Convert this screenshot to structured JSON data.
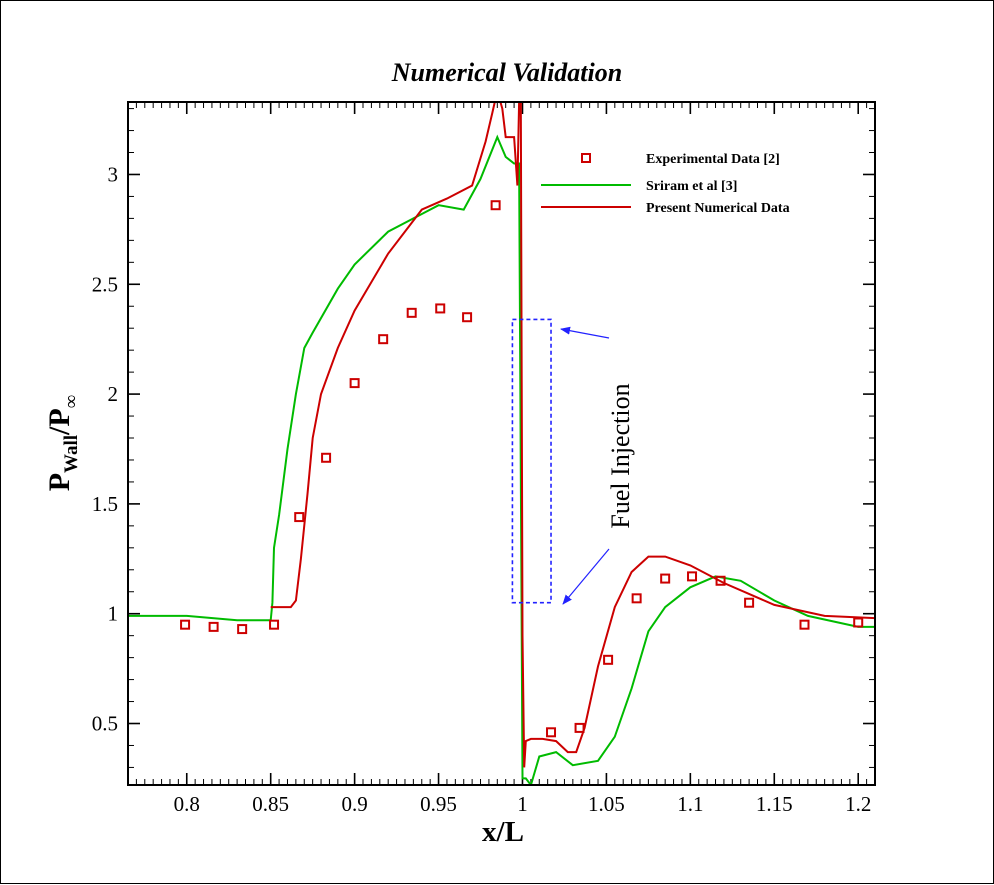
{
  "chart_data": {
    "type": "line",
    "title": "Numerical Validation",
    "xlabel": "x/L",
    "ylabel_main": "P",
    "ylabel_sub": "Wall",
    "ylabel_div": "/P",
    "ylabel_inf": "∞",
    "xlim": [
      0.765,
      1.21
    ],
    "ylim": [
      0.22,
      3.33
    ],
    "xticks": [
      0.8,
      0.85,
      0.9,
      0.95,
      1,
      1.05,
      1.1,
      1.15,
      1.2
    ],
    "xtick_labels": [
      "0.8",
      "0.85",
      "0.9",
      "0.95",
      "1",
      "1.05",
      "1.1",
      "1.15",
      "1.2"
    ],
    "yticks": [
      0.5,
      1,
      1.5,
      2,
      2.5,
      3
    ],
    "ytick_labels": [
      "0.5",
      "1",
      "1.5",
      "2",
      "2.5",
      "3"
    ],
    "legend_position": "top-right",
    "series": [
      {
        "name": "Experimental Data [2]",
        "style": "markers",
        "color": "#cc0000",
        "x": [
          0.799,
          0.816,
          0.833,
          0.852,
          0.867,
          0.883,
          0.9,
          0.917,
          0.934,
          0.951,
          0.967,
          0.984,
          1.017,
          1.034,
          1.051,
          1.068,
          1.085,
          1.101,
          1.118,
          1.135,
          1.168,
          1.2
        ],
        "y": [
          0.95,
          0.94,
          0.93,
          0.95,
          1.44,
          1.71,
          2.05,
          2.25,
          2.37,
          2.39,
          2.35,
          2.86,
          0.46,
          0.48,
          0.79,
          1.07,
          1.16,
          1.17,
          1.15,
          1.05,
          0.95,
          0.96
        ]
      },
      {
        "name": "Sriram et al [3]",
        "style": "line",
        "color": "#00bb00",
        "x": [
          0.765,
          0.8,
          0.83,
          0.85,
          0.851,
          0.852,
          0.855,
          0.86,
          0.865,
          0.87,
          0.875,
          0.89,
          0.9,
          0.92,
          0.94,
          0.95,
          0.965,
          0.975,
          0.985,
          0.99,
          0.995,
          0.998,
          1.0,
          1.002,
          1.005,
          1.01,
          1.02,
          1.03,
          1.045,
          1.055,
          1.065,
          1.075,
          1.085,
          1.1,
          1.115,
          1.13,
          1.15,
          1.17,
          1.2,
          1.21
        ],
        "y": [
          0.99,
          0.99,
          0.97,
          0.97,
          1.05,
          1.3,
          1.45,
          1.75,
          2.0,
          2.21,
          2.28,
          2.48,
          2.59,
          2.74,
          2.82,
          2.86,
          2.84,
          2.98,
          3.17,
          3.08,
          3.05,
          3.05,
          0.25,
          0.25,
          0.22,
          0.35,
          0.37,
          0.31,
          0.33,
          0.44,
          0.66,
          0.92,
          1.03,
          1.12,
          1.17,
          1.15,
          1.06,
          0.99,
          0.94,
          0.94
        ]
      },
      {
        "name": "Present Numerical Data",
        "style": "line",
        "color": "#cc0000",
        "x": [
          0.85,
          0.862,
          0.865,
          0.868,
          0.872,
          0.875,
          0.88,
          0.89,
          0.9,
          0.92,
          0.94,
          0.955,
          0.97,
          0.978,
          0.982,
          0.985,
          0.988,
          0.99,
          0.993,
          0.995,
          0.997,
          0.998,
          0.999,
          1.0,
          1.001,
          1.002,
          1.005,
          1.012,
          1.02,
          1.027,
          1.032,
          1.037,
          1.045,
          1.055,
          1.065,
          1.075,
          1.085,
          1.1,
          1.12,
          1.15,
          1.18,
          1.21
        ],
        "y": [
          1.03,
          1.03,
          1.06,
          1.25,
          1.55,
          1.8,
          2.0,
          2.21,
          2.38,
          2.64,
          2.84,
          2.89,
          2.95,
          3.15,
          3.28,
          3.38,
          3.3,
          3.17,
          3.17,
          3.17,
          2.95,
          3.33,
          3.35,
          0.9,
          0.3,
          0.42,
          0.43,
          0.43,
          0.42,
          0.37,
          0.37,
          0.48,
          0.76,
          1.03,
          1.19,
          1.26,
          1.26,
          1.22,
          1.14,
          1.04,
          0.99,
          0.98
        ]
      }
    ],
    "injection_box": {
      "x": [
        0.994,
        1.017
      ],
      "y": [
        1.05,
        2.34
      ],
      "color": "#2222ff"
    },
    "annotation": "Fuel Injection",
    "annotation_color": "#2222ff"
  }
}
